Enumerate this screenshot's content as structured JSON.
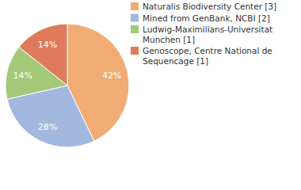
{
  "chart_data": {
    "type": "pie",
    "categories": [
      "Naturalis Biodiversity Center [3]",
      "Mined from GenBank, NCBI [2]",
      "Ludwig-Maximilians-Universitat Munchen [1]",
      "Genoscope, Centre National de Sequencage [1]"
    ],
    "values": [
      42,
      28,
      14,
      14
    ],
    "value_labels": [
      "42%",
      "28%",
      "14%",
      "14%"
    ],
    "colors": [
      "#f0ac73",
      "#a3b8de",
      "#a3c979",
      "#e07a5d"
    ],
    "data_labels": true,
    "legend": "right"
  }
}
